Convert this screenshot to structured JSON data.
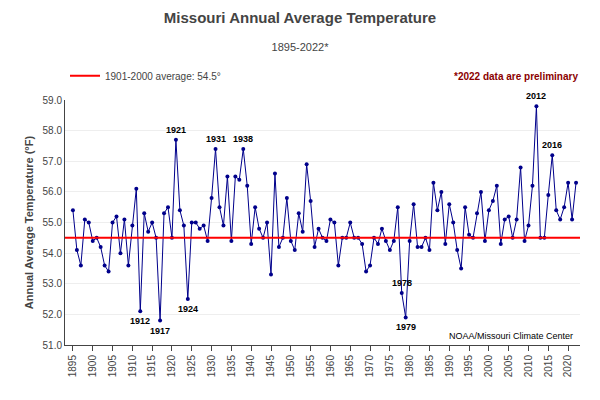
{
  "chart_data": {
    "type": "line",
    "title": "Missouri Annual Average Temperature",
    "subtitle": "1895-2022*",
    "y_label": "Annual Average Temperature (°F)",
    "x": [
      1895,
      1896,
      1897,
      1898,
      1899,
      1900,
      1901,
      1902,
      1903,
      1904,
      1905,
      1906,
      1907,
      1908,
      1909,
      1910,
      1911,
      1912,
      1913,
      1914,
      1915,
      1916,
      1917,
      1918,
      1919,
      1920,
      1921,
      1922,
      1923,
      1924,
      1925,
      1926,
      1927,
      1928,
      1929,
      1930,
      1931,
      1932,
      1933,
      1934,
      1935,
      1936,
      1937,
      1938,
      1939,
      1940,
      1941,
      1942,
      1943,
      1944,
      1945,
      1946,
      1947,
      1948,
      1949,
      1950,
      1951,
      1952,
      1953,
      1954,
      1955,
      1956,
      1957,
      1958,
      1959,
      1960,
      1961,
      1962,
      1963,
      1964,
      1965,
      1966,
      1967,
      1968,
      1969,
      1970,
      1971,
      1972,
      1973,
      1974,
      1975,
      1976,
      1977,
      1978,
      1979,
      1980,
      1981,
      1982,
      1983,
      1984,
      1985,
      1986,
      1987,
      1988,
      1989,
      1990,
      1991,
      1992,
      1993,
      1994,
      1995,
      1996,
      1997,
      1998,
      1999,
      2000,
      2001,
      2002,
      2003,
      2004,
      2005,
      2006,
      2007,
      2008,
      2009,
      2010,
      2011,
      2012,
      2013,
      2014,
      2015,
      2016,
      2017,
      2018,
      2019,
      2020,
      2021,
      2022
    ],
    "values": [
      55.4,
      54.1,
      53.6,
      55.1,
      55.0,
      54.4,
      54.5,
      54.2,
      53.6,
      53.4,
      55.0,
      55.2,
      54.0,
      55.1,
      53.6,
      54.9,
      56.1,
      52.1,
      55.3,
      54.7,
      55.0,
      54.5,
      51.8,
      55.3,
      55.5,
      54.5,
      57.7,
      55.4,
      54.9,
      52.5,
      55.0,
      55.0,
      54.8,
      54.9,
      54.4,
      55.8,
      57.4,
      55.5,
      54.9,
      56.5,
      54.4,
      56.5,
      56.4,
      57.4,
      56.2,
      54.3,
      55.5,
      54.8,
      54.5,
      55.0,
      53.3,
      56.6,
      54.2,
      54.5,
      55.8,
      54.4,
      54.1,
      55.3,
      54.7,
      56.9,
      55.7,
      54.2,
      54.8,
      54.5,
      54.4,
      55.1,
      55.0,
      53.6,
      54.5,
      54.5,
      55.0,
      54.5,
      54.5,
      54.3,
      53.4,
      53.6,
      54.5,
      54.3,
      54.8,
      54.4,
      54.1,
      54.4,
      55.5,
      52.7,
      51.9,
      54.4,
      55.6,
      54.2,
      54.2,
      54.5,
      54.1,
      56.3,
      55.4,
      56.0,
      54.3,
      55.6,
      55.0,
      54.1,
      53.5,
      55.5,
      54.6,
      54.5,
      55.3,
      56.0,
      54.4,
      55.4,
      55.7,
      56.2,
      54.3,
      55.1,
      55.2,
      54.5,
      55.1,
      56.8,
      54.4,
      54.9,
      56.2,
      58.8,
      54.5,
      54.5,
      55.9,
      57.2,
      55.4,
      55.1,
      55.5,
      56.3,
      55.1,
      56.3
    ],
    "color": "#00008B",
    "marker": "circle",
    "reference_line": {
      "value": 54.5,
      "color": "#FF0000",
      "name": "1901-2000 average: 54.5°"
    },
    "legend": "top left",
    "xlim": [
      1893,
      2023
    ],
    "xticks": [
      1895,
      1900,
      1905,
      1910,
      1915,
      1920,
      1925,
      1930,
      1935,
      1940,
      1945,
      1950,
      1955,
      1960,
      1965,
      1970,
      1975,
      1980,
      1985,
      1990,
      1995,
      2000,
      2005,
      2010,
      2015,
      2020
    ],
    "ylim": [
      51.0,
      59.0
    ],
    "yticks": [
      {
        "value": 51.0,
        "label": "51.0"
      },
      {
        "value": 52.0,
        "label": "52.0"
      },
      {
        "value": 53.0,
        "label": "53.0"
      },
      {
        "value": 54.0,
        "label": "54.0"
      },
      {
        "value": 55.0,
        "label": "55.0"
      },
      {
        "value": 56.0,
        "label": "56.0"
      },
      {
        "value": 57.0,
        "label": "57.0"
      },
      {
        "value": 58.0,
        "label": "58.0"
      },
      {
        "value": 59.0,
        "label": "59.0"
      }
    ],
    "grid": "y",
    "annotations": [
      {
        "text": "1912",
        "x": 1912,
        "y": 52.1,
        "position": "below"
      },
      {
        "text": "1917",
        "x": 1917,
        "y": 51.8,
        "position": "below"
      },
      {
        "text": "1921",
        "x": 1921,
        "y": 57.7,
        "position": "above"
      },
      {
        "text": "1924",
        "x": 1924,
        "y": 52.5,
        "position": "below"
      },
      {
        "text": "1931",
        "x": 1931,
        "y": 57.4,
        "position": "above"
      },
      {
        "text": "1938",
        "x": 1938,
        "y": 57.4,
        "position": "above"
      },
      {
        "text": "1978",
        "x": 1978,
        "y": 52.7,
        "position": "above"
      },
      {
        "text": "1979",
        "x": 1979,
        "y": 51.9,
        "position": "below"
      },
      {
        "text": "2012",
        "x": 2012,
        "y": 58.8,
        "position": "above"
      },
      {
        "text": "2016",
        "x": 2016,
        "y": 57.2,
        "position": "above"
      }
    ],
    "note": {
      "text": "*2022 data are preliminary",
      "color": "#8B0000"
    },
    "credit": "NOAA/Missouri Climate Center"
  }
}
